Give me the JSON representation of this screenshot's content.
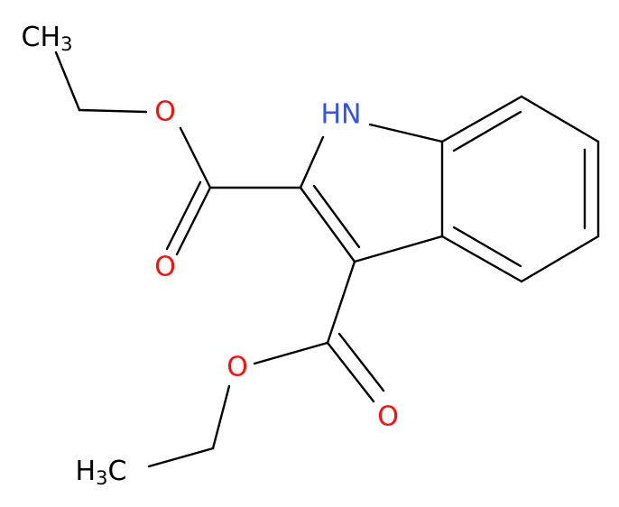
{
  "nodes": [
    {
      "label": "CH",
      "sub": "3"
    },
    {
      "label": "O"
    },
    {
      "label": "O"
    },
    {
      "label": "HN"
    },
    {
      "label": "O"
    },
    {
      "label": "O"
    },
    {
      "label": "H",
      "sub": "3",
      "tail": "C"
    }
  ]
}
